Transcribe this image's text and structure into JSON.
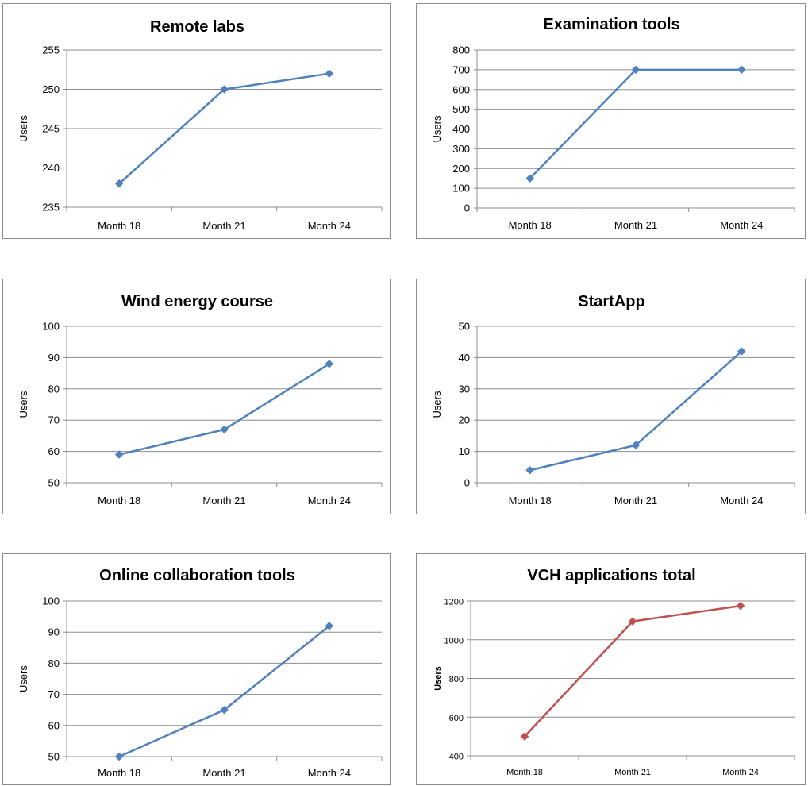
{
  "chart_data": [
    {
      "type": "line",
      "title": "Remote labs",
      "ylabel": "Users",
      "xlabel": "",
      "categories": [
        "Month 18",
        "Month 21",
        "Month 24"
      ],
      "ylim": [
        235,
        255
      ],
      "yticks": [
        235,
        240,
        245,
        250,
        255
      ],
      "series": [
        {
          "values": [
            238,
            250,
            252
          ],
          "color": "#4f81bd"
        }
      ],
      "grid": true
    },
    {
      "type": "line",
      "title": "Examination tools",
      "ylabel": "Users",
      "xlabel": "",
      "categories": [
        "Month 18",
        "Month 21",
        "Month 24"
      ],
      "ylim": [
        0,
        800
      ],
      "yticks": [
        0,
        100,
        200,
        300,
        400,
        500,
        600,
        700,
        800
      ],
      "series": [
        {
          "values": [
            150,
            700,
            700
          ],
          "color": "#4f81bd"
        }
      ],
      "grid": true
    },
    {
      "type": "line",
      "title": "Wind energy course",
      "ylabel": "Users",
      "xlabel": "",
      "categories": [
        "Month 18",
        "Month 21",
        "Month 24"
      ],
      "ylim": [
        50,
        100
      ],
      "yticks": [
        50,
        60,
        70,
        80,
        90,
        100
      ],
      "series": [
        {
          "values": [
            59,
            67,
            88
          ],
          "color": "#4f81bd"
        }
      ],
      "grid": true
    },
    {
      "type": "line",
      "title": "StartApp",
      "ylabel": "Users",
      "xlabel": "",
      "categories": [
        "Month 18",
        "Month 21",
        "Month 24"
      ],
      "ylim": [
        0,
        50
      ],
      "yticks": [
        0,
        10,
        20,
        30,
        40,
        50
      ],
      "series": [
        {
          "values": [
            4,
            12,
            42
          ],
          "color": "#4f81bd"
        }
      ],
      "grid": true
    },
    {
      "type": "line",
      "title": "Online collaboration tools",
      "ylabel": "Users",
      "xlabel": "",
      "categories": [
        "Month 18",
        "Month 21",
        "Month 24"
      ],
      "ylim": [
        50,
        100
      ],
      "yticks": [
        50,
        60,
        70,
        80,
        90,
        100
      ],
      "series": [
        {
          "values": [
            50,
            65,
            92
          ],
          "color": "#4f81bd"
        }
      ],
      "grid": true
    },
    {
      "type": "line",
      "title": "VCH applications total",
      "ylabel": "Users",
      "xlabel": "",
      "categories": [
        "Month 18",
        "Month 21",
        "Month 24"
      ],
      "ylim": [
        400,
        1200
      ],
      "yticks": [
        400,
        600,
        800,
        1000,
        1200
      ],
      "series": [
        {
          "values": [
            500,
            1095,
            1175
          ],
          "color": "#c0504d"
        }
      ],
      "grid": true
    }
  ]
}
